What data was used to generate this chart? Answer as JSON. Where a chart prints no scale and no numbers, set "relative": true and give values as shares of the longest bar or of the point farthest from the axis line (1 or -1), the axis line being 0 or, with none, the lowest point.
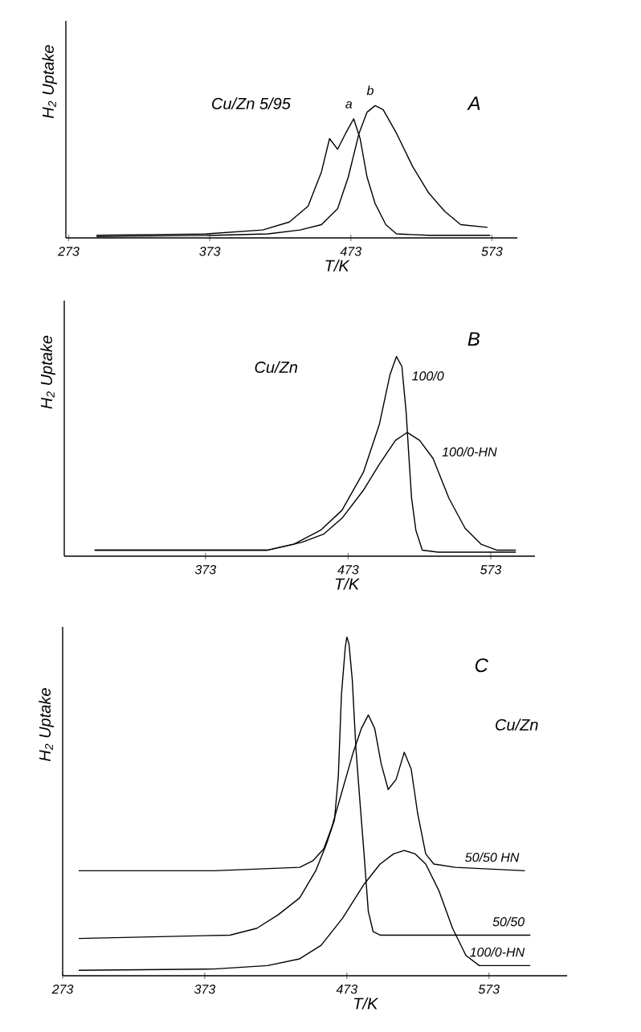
{
  "chart_data": [
    {
      "type": "line",
      "title": "A",
      "annotations": [
        "Cu/Zn 5/95"
      ],
      "xlabel": "T/K",
      "ylabel": "H$_{2}$ Uptake",
      "relative": true,
      "xlim": [
        271,
        591
      ],
      "xticks": [
        273,
        373,
        473,
        573
      ],
      "series": [
        {
          "name": "a",
          "color": "#000000",
          "x": [
            292.7,
            370.6,
            410.5,
            429.4,
            442.7,
            452.2,
            457.9,
            463.6,
            469.3,
            475.0,
            479.6,
            484.5,
            490.2,
            497.8,
            505.4,
            528.2,
            571.8
          ],
          "values": [
            0.02,
            0.03,
            0.06,
            0.12,
            0.24,
            0.5,
            0.75,
            0.67,
            0.79,
            0.9,
            0.75,
            0.46,
            0.26,
            0.1,
            0.03,
            0.02,
            0.02
          ]
        },
        {
          "name": "b",
          "color": "#000000",
          "x": [
            292.7,
            376.3,
            414.3,
            437.0,
            452.2,
            463.6,
            471.2,
            478.8,
            484.5,
            490.2,
            495.9,
            505.4,
            516.8,
            528.2,
            539.6,
            550.9,
            569.9
          ],
          "values": [
            0.01,
            0.02,
            0.03,
            0.06,
            0.1,
            0.22,
            0.46,
            0.79,
            0.95,
            1.0,
            0.97,
            0.79,
            0.54,
            0.34,
            0.2,
            0.1,
            0.08
          ]
        }
      ]
    },
    {
      "type": "line",
      "title": "B",
      "annotations": [
        "Cu/Zn"
      ],
      "xlabel": "T/K",
      "ylabel": "H$_{2}$ Uptake",
      "relative": true,
      "xlim": [
        274,
        604
      ],
      "xticks": [
        373,
        473,
        573
      ],
      "series": [
        {
          "name": "100/0",
          "color": "#000000",
          "x": [
            295.3,
            378.6,
            416.1,
            434.9,
            453.7,
            468.7,
            483.7,
            494.9,
            502.4,
            506.9,
            510.7,
            513.7,
            515.6,
            517.5,
            520.5,
            525.0,
            536.2,
            590.6
          ],
          "values": [
            0.03,
            0.03,
            0.03,
            0.06,
            0.13,
            0.23,
            0.42,
            0.66,
            0.91,
            1.0,
            0.95,
            0.72,
            0.5,
            0.29,
            0.13,
            0.03,
            0.02,
            0.02
          ]
        },
        {
          "name": "100/0-HN",
          "color": "#000000",
          "x": [
            295.3,
            416.1,
            440.7,
            455.7,
            468.7,
            483.7,
            494.9,
            506.2,
            514.5,
            523.1,
            532.5,
            543.7,
            555.0,
            566.2,
            577.5,
            590.6
          ],
          "values": [
            0.03,
            0.03,
            0.07,
            0.11,
            0.19,
            0.33,
            0.46,
            0.58,
            0.62,
            0.58,
            0.49,
            0.29,
            0.14,
            0.06,
            0.03,
            0.03
          ]
        }
      ]
    },
    {
      "type": "line",
      "title": "C",
      "annotations": [
        "Cu/Zn"
      ],
      "xlabel": "T/K",
      "ylabel": "H$_{2}$ Uptake",
      "relative": true,
      "xlim": [
        273,
        628
      ],
      "xticks": [
        273,
        373,
        473,
        573
      ],
      "series": [
        {
          "name": "50/50 HN",
          "color": "#000000",
          "x": [
            284.3,
            379.4,
            439.8,
            449.2,
            456.8,
            462.5,
            470.0,
            477.5,
            483.2,
            488.1,
            492.6,
            497.2,
            502.1,
            507.7,
            513.4,
            518.3,
            522.8,
            528.5,
            534.2,
            549.3,
            598.3
          ],
          "values": [
            0.31,
            0.31,
            0.32,
            0.34,
            0.375,
            0.44,
            0.55,
            0.66,
            0.73,
            0.77,
            0.73,
            0.625,
            0.55,
            0.58,
            0.66,
            0.61,
            0.48,
            0.36,
            0.33,
            0.32,
            0.31
          ]
        },
        {
          "name": "50/50",
          "color": "#000000",
          "x": [
            284.3,
            390.7,
            409.6,
            424.7,
            439.8,
            451.1,
            458.7,
            464.3,
            467.0,
            469.2,
            471.9,
            473.0,
            474.5,
            476.8,
            479.4,
            482.1,
            485.1,
            488.1,
            491.5,
            496.4,
            530.4,
            602.1
          ],
          "values": [
            0.11,
            0.12,
            0.14,
            0.18,
            0.23,
            0.31,
            0.39,
            0.46,
            0.59,
            0.83,
            0.97,
            1.0,
            0.98,
            0.875,
            0.67,
            0.52,
            0.36,
            0.19,
            0.13,
            0.12,
            0.12,
            0.12
          ]
        },
        {
          "name": "100/0-HN",
          "color": "#000000",
          "x": [
            284.3,
            379.4,
            417.2,
            439.8,
            454.9,
            470.0,
            485.1,
            496.4,
            505.9,
            513.4,
            521.0,
            528.5,
            537.9,
            547.4,
            556.8,
            566.2,
            579.4,
            602.1
          ],
          "values": [
            0.016,
            0.02,
            0.03,
            0.05,
            0.09,
            0.17,
            0.27,
            0.33,
            0.36,
            0.37,
            0.36,
            0.33,
            0.25,
            0.14,
            0.06,
            0.03,
            0.03,
            0.03
          ]
        }
      ]
    }
  ]
}
